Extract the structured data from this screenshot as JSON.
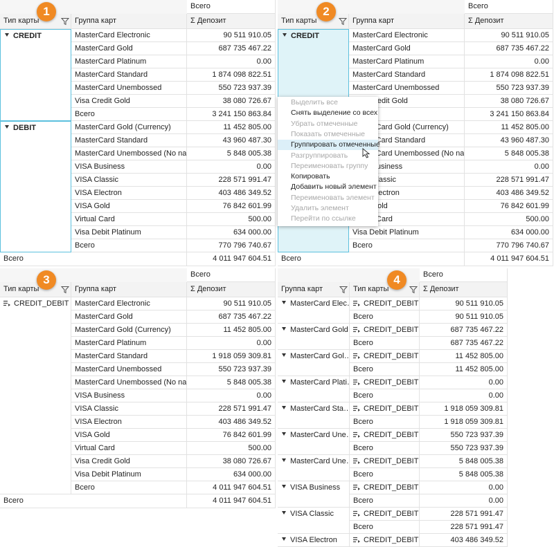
{
  "panels": [
    {
      "badge": "1",
      "column_header": "Всего",
      "headers": [
        "Тип карты",
        "Группа карт",
        "Σ Депозит"
      ],
      "groups": [
        {
          "label": "CREDIT",
          "rows": [
            [
              "MasterCard Electronic",
              "90 511 910.05"
            ],
            [
              "MasterCard Gold",
              "687 735 467.22"
            ],
            [
              "MasterCard Platinum",
              "0.00"
            ],
            [
              "MasterCard Standard",
              "1 874 098 822.51"
            ],
            [
              "MasterCard Unembossed",
              "550 723 937.39"
            ],
            [
              "Visa Credit Gold",
              "38 080 726.67"
            ],
            [
              "Всего",
              "3 241 150 863.84"
            ]
          ]
        },
        {
          "label": "DEBIT",
          "rows": [
            [
              "MasterCard Gold (Currency)",
              "11 452 805.00"
            ],
            [
              "MasterCard Standard",
              "43 960 487.30"
            ],
            [
              "MasterCard Unembossed (No name)",
              "5 848 005.38"
            ],
            [
              "VISA Business",
              "0.00"
            ],
            [
              "VISA Classic",
              "228 571 991.47"
            ],
            [
              "VISA Electron",
              "403 486 349.52"
            ],
            [
              "VISA Gold",
              "76 842 601.99"
            ],
            [
              "Virtual Card",
              "500.00"
            ],
            [
              "Visa Debit Platinum",
              "634 000.00"
            ],
            [
              "Всего",
              "770 796 740.67"
            ]
          ]
        }
      ],
      "total": {
        "label": "Всего",
        "value": "4 011 947 604.51"
      }
    },
    {
      "badge": "2",
      "column_header": "Всего",
      "headers": [
        "Тип карты",
        "Группа карт",
        "Σ Депозит"
      ],
      "groups": [
        {
          "label": "CREDIT",
          "rows": [
            [
              "MasterCard Electronic",
              "90 511 910.05"
            ],
            [
              "MasterCard Gold",
              "687 735 467.22"
            ],
            [
              "MasterCard Platinum",
              "0.00"
            ],
            [
              "MasterCard Standard",
              "1 874 098 822.51"
            ],
            [
              "MasterCard Unembossed",
              "550 723 937.39"
            ],
            [
              "Visa Credit Gold",
              "38 080 726.67"
            ],
            [
              "Всего",
              "3 241 150 863.84"
            ]
          ]
        },
        {
          "label": "DEBIT",
          "rows": [
            [
              "MasterCard Gold (Currency)",
              "11 452 805.00"
            ],
            [
              "MasterCard Standard",
              "43 960 487.30"
            ],
            [
              "MasterCard Unembossed (No name)",
              "5 848 005.38"
            ],
            [
              "VISA Business",
              "0.00"
            ],
            [
              "VISA Classic",
              "228 571 991.47"
            ],
            [
              "VISA Electron",
              "403 486 349.52"
            ],
            [
              "VISA Gold",
              "76 842 601.99"
            ],
            [
              "Virtual Card",
              "500.00"
            ],
            [
              "Visa Debit Platinum",
              "634 000.00"
            ],
            [
              "Всего",
              "770 796 740.67"
            ]
          ]
        }
      ],
      "total": {
        "label": "Всего",
        "value": "4 011 947 604.51"
      },
      "context_menu": [
        {
          "label": "Выделить все",
          "enabled": false
        },
        {
          "label": "Снять выделение со всех",
          "enabled": true
        },
        {
          "label": "Убрать отмеченные",
          "enabled": false
        },
        {
          "label": "Показать отмеченные",
          "enabled": false
        },
        {
          "label": "Группировать отмеченные",
          "enabled": true,
          "hover": true
        },
        {
          "label": "Разгруппировать",
          "enabled": false
        },
        {
          "label": "Переименовать группу",
          "enabled": false
        },
        {
          "label": "Копировать",
          "enabled": true
        },
        {
          "label": "Добавить новый элемент",
          "enabled": true
        },
        {
          "label": "Переименовать элемент",
          "enabled": false
        },
        {
          "label": "Удалить элемент",
          "enabled": false
        },
        {
          "label": "Перейти по ссылке",
          "enabled": false
        }
      ]
    },
    {
      "badge": "3",
      "column_header": "Всего",
      "headers": [
        "Тип карты",
        "Группа карт",
        "Σ Депозит"
      ],
      "groups": [
        {
          "label": "CREDIT_DEBIT",
          "rows": [
            [
              "MasterCard Electronic",
              "90 511 910.05"
            ],
            [
              "MasterCard Gold",
              "687 735 467.22"
            ],
            [
              "MasterCard Gold (Currency)",
              "11 452 805.00"
            ],
            [
              "MasterCard Platinum",
              "0.00"
            ],
            [
              "MasterCard Standard",
              "1 918 059 309.81"
            ],
            [
              "MasterCard Unembossed",
              "550 723 937.39"
            ],
            [
              "MasterCard Unembossed (No name)",
              "5 848 005.38"
            ],
            [
              "VISA Business",
              "0.00"
            ],
            [
              "VISA Classic",
              "228 571 991.47"
            ],
            [
              "VISA Electron",
              "403 486 349.52"
            ],
            [
              "VISA Gold",
              "76 842 601.99"
            ],
            [
              "Virtual Card",
              "500.00"
            ],
            [
              "Visa Credit Gold",
              "38 080 726.67"
            ],
            [
              "Visa Debit Platinum",
              "634 000.00"
            ],
            [
              "Всего",
              "4 011 947 604.51"
            ]
          ]
        }
      ],
      "total": {
        "label": "Всего",
        "value": "4 011 947 604.51"
      }
    },
    {
      "badge": "4",
      "column_header": "Всего",
      "headers": [
        "Группа карт",
        "Тип карты",
        "Σ Депозит"
      ],
      "groups": [
        {
          "label": "MasterCard Elec…",
          "rows": [
            [
              "CREDIT_DEBIT",
              "90 511 910.05"
            ],
            [
              "Всего",
              "90 511 910.05"
            ]
          ]
        },
        {
          "label": "MasterCard Gold",
          "rows": [
            [
              "CREDIT_DEBIT",
              "687 735 467.22"
            ],
            [
              "Всего",
              "687 735 467.22"
            ]
          ]
        },
        {
          "label": "MasterCard Gol…",
          "rows": [
            [
              "CREDIT_DEBIT",
              "11 452 805.00"
            ],
            [
              "Всего",
              "11 452 805.00"
            ]
          ]
        },
        {
          "label": "MasterCard Plati…",
          "rows": [
            [
              "CREDIT_DEBIT",
              "0.00"
            ],
            [
              "Всего",
              "0.00"
            ]
          ]
        },
        {
          "label": "MasterCard Sta…",
          "rows": [
            [
              "CREDIT_DEBIT",
              "1 918 059 309.81"
            ],
            [
              "Всего",
              "1 918 059 309.81"
            ]
          ]
        },
        {
          "label": "MasterCard Une…",
          "rows": [
            [
              "CREDIT_DEBIT",
              "550 723 937.39"
            ],
            [
              "Всего",
              "550 723 937.39"
            ]
          ]
        },
        {
          "label": "MasterCard Une…",
          "rows": [
            [
              "CREDIT_DEBIT",
              "5 848 005.38"
            ],
            [
              "Всего",
              "5 848 005.38"
            ]
          ]
        },
        {
          "label": "VISA Business",
          "rows": [
            [
              "CREDIT_DEBIT",
              "0.00"
            ],
            [
              "Всего",
              "0.00"
            ]
          ]
        },
        {
          "label": "VISA Classic",
          "rows": [
            [
              "CREDIT_DEBIT",
              "228 571 991.47"
            ],
            [
              "Всего",
              "228 571 991.47"
            ]
          ]
        },
        {
          "label": "VISA Electron",
          "rows": [
            [
              "CREDIT_DEBIT",
              "403 486 349.52"
            ]
          ]
        }
      ]
    }
  ]
}
